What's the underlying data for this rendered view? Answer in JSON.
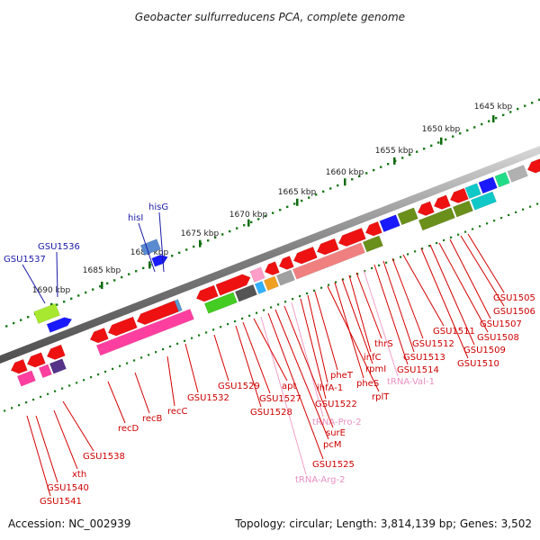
{
  "title": "Geobacter sulfurreducens PCA, complete genome",
  "footer": {
    "accession": "Accession: NC_002939",
    "summary": "Topology: circular; Length: 3,814,139 bp; Genes: 3,502"
  },
  "ticks": [
    "1645 kbp",
    "1650 kbp",
    "1655 kbp",
    "1660 kbp",
    "1665 kbp",
    "1670 kbp",
    "1675 kbp",
    "1680 kbp",
    "1685 kbp",
    "1690 kbp"
  ],
  "colors": {
    "backbone": "#8c8c8c",
    "dots": "#1a7a1a",
    "label_line_red": "#d40000",
    "label_line_pink": "#f0a0c8",
    "label_line_blue": "#1a1aa8",
    "label_text_red": "#cc0000",
    "label_text_pink": "#e890c0",
    "label_text_blue": "#1a1aa8"
  },
  "labels": [
    "GSU1505",
    "GSU1506",
    "GSU1507",
    "GSU1508",
    "GSU1509",
    "GSU1510",
    "GSU1511",
    "GSU1512",
    "GSU1513",
    "GSU1514",
    "tRNA-Val-1",
    "thrS",
    "infC",
    "rpmI",
    "pheS",
    "rplT",
    "pheT",
    "ihfA-1",
    "GSU1522",
    "tRNA-Pro-2",
    "surE",
    "pcM",
    "GSU1525",
    "tRNA-Arg-2",
    "apt",
    "GSU1527",
    "GSU1528",
    "GSU1529",
    "GSU1532",
    "recC",
    "recB",
    "recD",
    "GSU1538",
    "xth",
    "GSU1540",
    "GSU1541",
    "hisG",
    "hisI",
    "GSU1536",
    "GSU1537"
  ]
}
